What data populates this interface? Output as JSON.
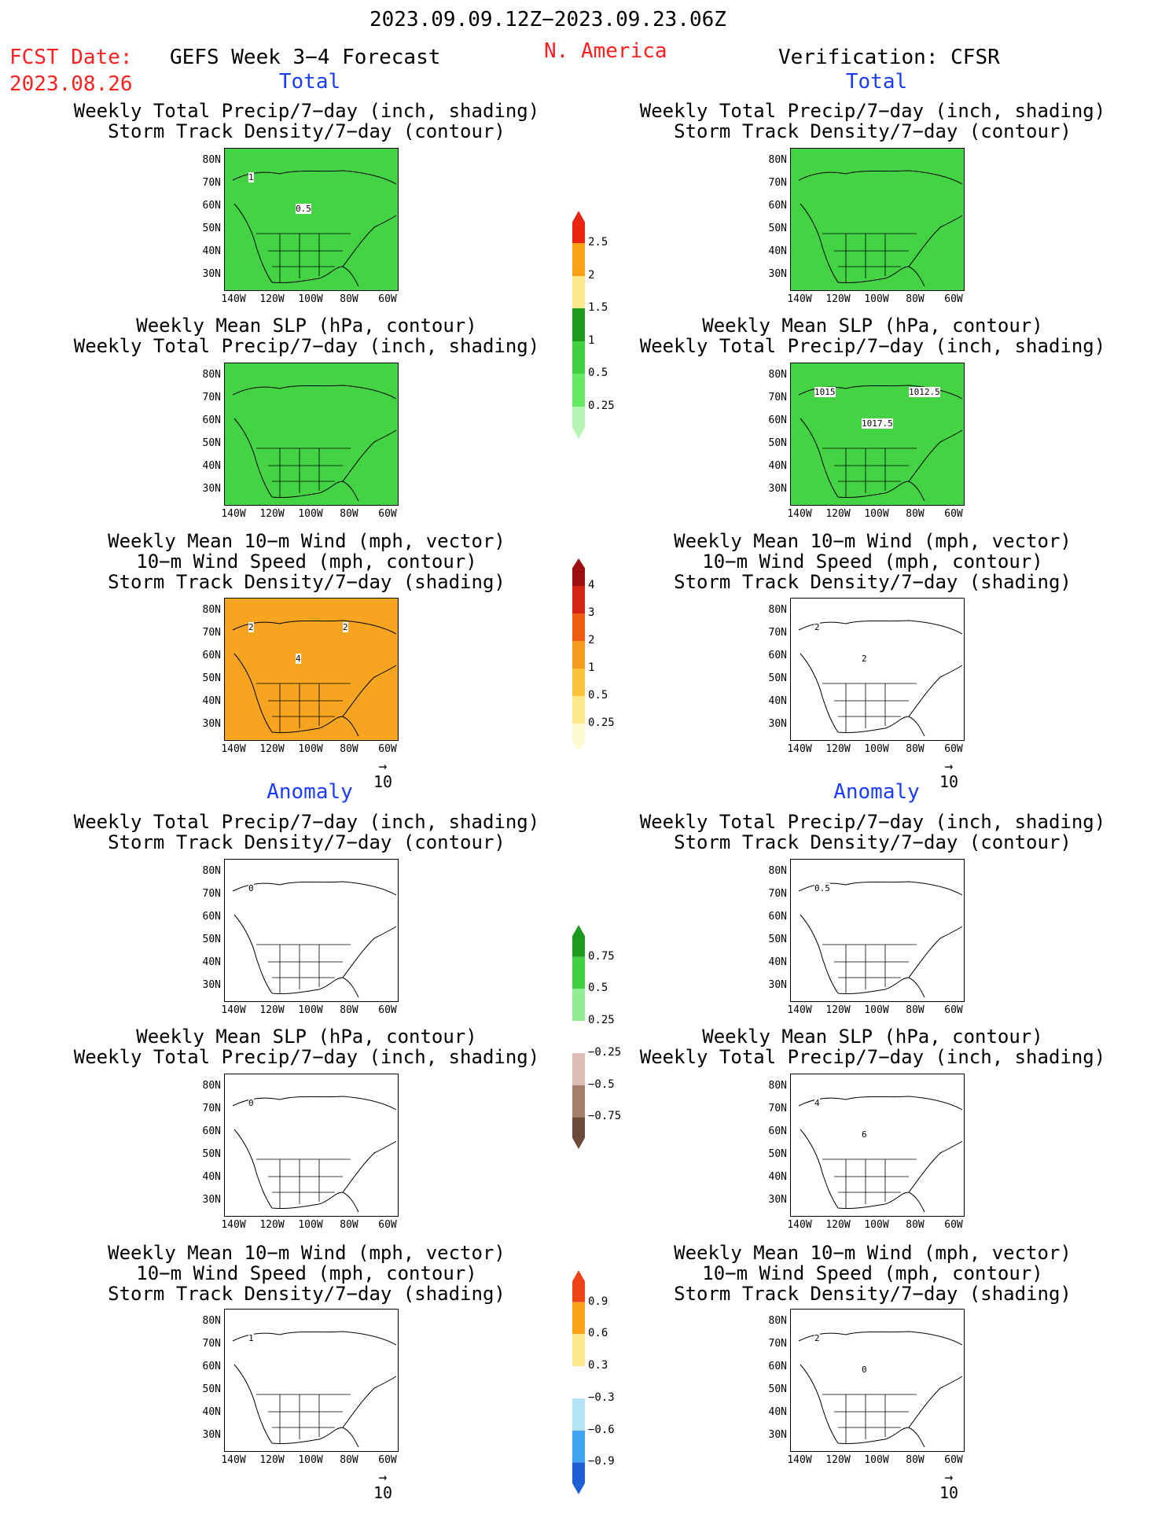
{
  "header": {
    "date_range": "2023.09.09.12Z−2023.09.23.06Z",
    "fcst_label": "FCST Date:",
    "fcst_date": "2023.08.26",
    "product": "GEFS Week 3−4 Forecast",
    "region": "N. America",
    "verification": "Verification: CFSR"
  },
  "sections": {
    "total": "Total",
    "anomaly": "Anomaly"
  },
  "titles": {
    "precip_storm": [
      "Weekly Total Precip/7−day (inch, shading)",
      "Storm Track Density/7−day (contour)"
    ],
    "slp_precip": [
      "Weekly Mean SLP (hPa, contour)",
      "Weekly Total Precip/7−day (inch, shading)"
    ],
    "wind_storm": [
      "Weekly Mean 10−m Wind (mph, vector)",
      "10−m Wind Speed (mph, contour)",
      "Storm Track Density/7−day (shading)"
    ]
  },
  "lat_labels": [
    "80N",
    "70N",
    "60N",
    "50N",
    "40N",
    "30N"
  ],
  "lon_labels": [
    "140W",
    "120W",
    "100W",
    "80W",
    "60W"
  ],
  "vector_ref": "10",
  "colorbars": {
    "total_precip": {
      "labels": [
        "2.5",
        "2",
        "1.5",
        "1",
        "0.5",
        "0.25"
      ],
      "colors": [
        "#e8250f",
        "#fba115",
        "#fde98a",
        "#1d9a1d",
        "#3fd13f",
        "#66ea66",
        "#b4f5b4"
      ]
    },
    "storm_density": {
      "labels": [
        "4",
        "3",
        "2",
        "1",
        "0.5",
        "0.25"
      ],
      "colors": [
        "#9b0f0f",
        "#d62512",
        "#f05e13",
        "#f79b1a",
        "#fbc23c",
        "#fde98a",
        "#fef8d0"
      ]
    },
    "precip_anomaly": {
      "labels": [
        "0.75",
        "0.5",
        "0.25",
        "−0.25",
        "−0.5",
        "−0.75"
      ],
      "colors": [
        "#1d9a1d",
        "#3fd13f",
        "#92ec92",
        "#ffffff",
        "#dcbfb4",
        "#a57d6b",
        "#6e4a3b"
      ]
    },
    "storm_anomaly": {
      "labels": [
        "0.9",
        "0.6",
        "0.3",
        "−0.3",
        "−0.6",
        "−0.9"
      ],
      "colors": [
        "#f04418",
        "#fba115",
        "#fde98a",
        "#ffffff",
        "#b5e4f5",
        "#3fa4f2",
        "#1c5fd6"
      ]
    }
  },
  "panel_annotations": {
    "l1": [
      "1",
      "0.5"
    ],
    "r2": [
      "1015",
      "1017.5",
      "1012.5"
    ],
    "l3": [
      "2",
      "4",
      "2"
    ],
    "r3": [
      "2",
      "2"
    ],
    "l4": [
      "0"
    ],
    "r4": [
      "0.5"
    ],
    "l5": [
      "0"
    ],
    "r5": [
      "4",
      "6"
    ],
    "l6": [
      "1"
    ],
    "r6": [
      "2",
      "0"
    ]
  },
  "panel_fill": {
    "l1": "#44d344",
    "r1": "#44d344",
    "l2": "#44d344",
    "r2": "#44d344",
    "l3": "#f7a520",
    "r3": "#ffffff",
    "l4": "#ffffff",
    "r4": "#ffffff",
    "l5": "#ffffff",
    "r5": "#ffffff",
    "l6": "#ffffff",
    "r6": "#ffffff"
  }
}
